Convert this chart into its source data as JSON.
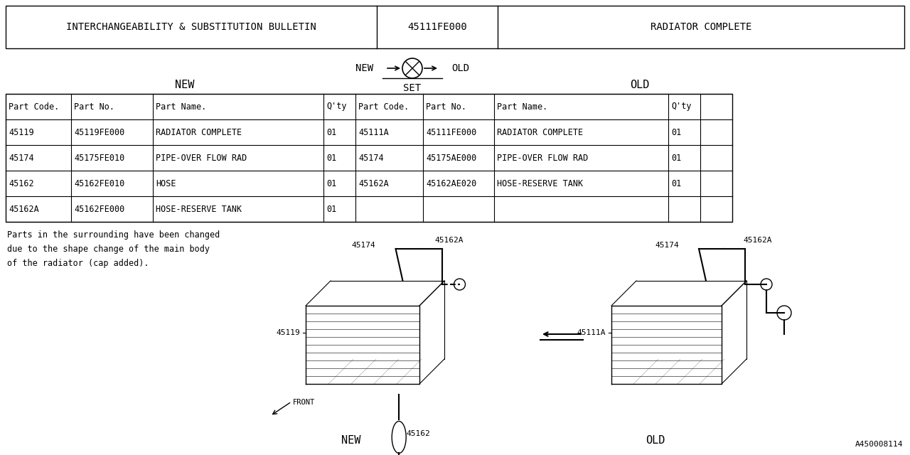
{
  "bg_color": "#ffffff",
  "text_color": "#000000",
  "font_family": "monospace",
  "header": {
    "col1": "INTERCHANGEABILITY & SUBSTITUTION BULLETIN",
    "col2": "45111FE000",
    "col3": "RADIATOR COMPLETE"
  },
  "table_headers": [
    "Part Code.",
    "Part No.",
    "Part Name.",
    "Q'ty",
    "Part Code.",
    "Part No.",
    "Part Name.",
    "Q'ty"
  ],
  "new_rows": [
    [
      "45119",
      "45119FE000",
      "RADIATOR COMPLETE",
      "01"
    ],
    [
      "45174",
      "45175FE010",
      "PIPE-OVER FLOW RAD",
      "01"
    ],
    [
      "45162",
      "45162FE010",
      "HOSE",
      "01"
    ],
    [
      "45162A",
      "45162FE000",
      "HOSE-RESERVE TANK",
      "01"
    ]
  ],
  "old_rows": [
    [
      "45111A",
      "45111FE000",
      "RADIATOR COMPLETE",
      "01"
    ],
    [
      "45174",
      "45175AE000",
      "PIPE-OVER FLOW RAD",
      "01"
    ],
    [
      "45162A",
      "45162AE020",
      "HOSE-RESERVE TANK",
      "01"
    ],
    [
      "",
      "",
      "",
      ""
    ]
  ],
  "note_text": "Parts in the surrounding have been changed\ndue to the shape change of the main body\nof the radiator (cap added).",
  "footer_code": "A450008114"
}
